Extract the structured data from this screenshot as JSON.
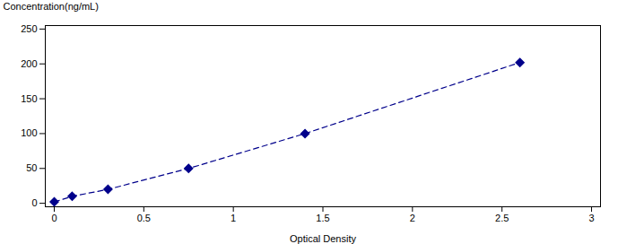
{
  "chart_data": {
    "type": "line",
    "xlabel": "Optical Density",
    "ylabel": "Concentration(ng/mL)",
    "x": [
      0.0,
      0.1,
      0.3,
      0.75,
      1.4,
      2.6
    ],
    "values": [
      2,
      10,
      20,
      50,
      100,
      202
    ],
    "color": "#00008B",
    "line_style": "dashed",
    "marker": "diamond",
    "xlim": [
      -0.05,
      3.05
    ],
    "ylim": [
      -5,
      255
    ],
    "xticks": [
      0,
      0.5,
      1,
      1.5,
      2,
      2.5,
      3
    ],
    "yticks": [
      0,
      50,
      100,
      150,
      200,
      250
    ],
    "grid": false
  }
}
